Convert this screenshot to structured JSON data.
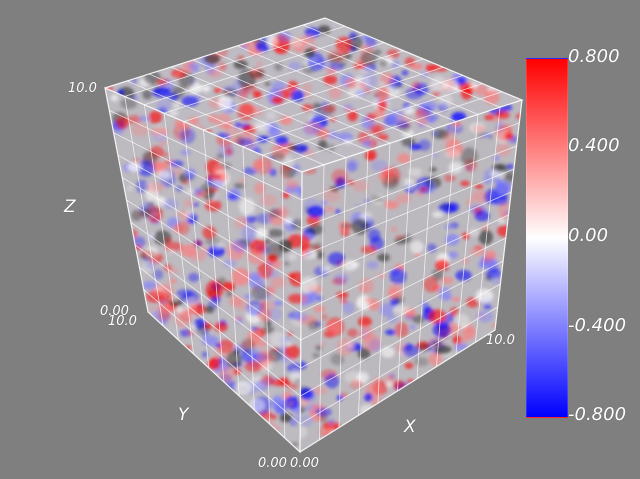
{
  "scene": {
    "type": "volume-render",
    "axes": {
      "x": {
        "label": "X",
        "min_label": "0.00",
        "max_label": "10.0"
      },
      "y": {
        "label": "Y",
        "min_label": "0.00",
        "max_label": "10.0"
      },
      "z": {
        "label": "Z",
        "min_label": "0.00",
        "max_label": "10.0"
      }
    },
    "grid_divisions": 10
  },
  "colorbar": {
    "ticks": [
      "0.800",
      "0.400",
      "0.00",
      "-0.400",
      "-0.800"
    ],
    "colors": {
      "max": "#ff0000",
      "mid": "#ffffff",
      "min": "#0000ff"
    }
  },
  "colors": {
    "background": "#7f7f7f",
    "grid": "#ffffff"
  }
}
